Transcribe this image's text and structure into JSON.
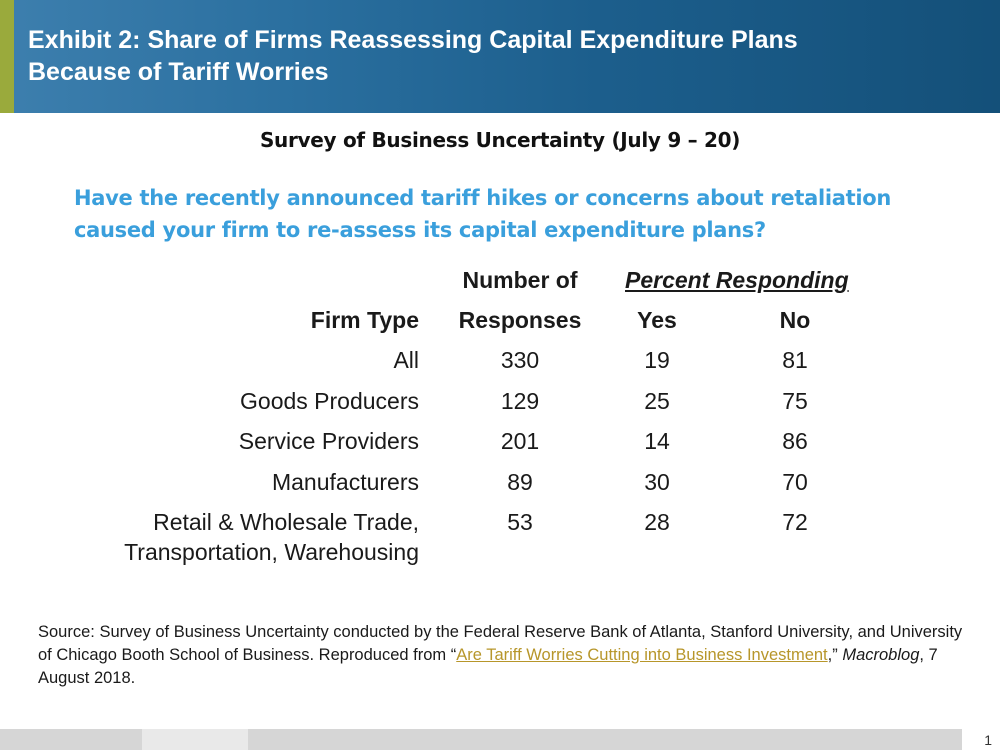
{
  "header": {
    "title_line1": "Exhibit 2: Share of Firms Reassessing Capital Expenditure Plans",
    "title_line2": "Because of Tariff Worries",
    "accent_color": "#9aaa3c",
    "background_color": "#1c5e8c"
  },
  "survey_title": "Survey of Business Uncertainty (July 9 – 20)",
  "question": {
    "line1": "Have the recently announced tariff hikes or concerns about retaliation",
    "line2": "caused your firm to re-assess its capital expenditure plans?",
    "color": "#3a9fdc"
  },
  "chart_data": {
    "type": "table",
    "columns": {
      "firm_type": "Firm Type",
      "responses_line1": "Number of",
      "responses_line2": "Responses",
      "percent_group": "Percent Responding",
      "yes": "Yes",
      "no": "No"
    },
    "rows": [
      {
        "firm_type": [
          "All"
        ],
        "responses": "330",
        "yes": "19",
        "no": "81"
      },
      {
        "firm_type": [
          "Goods Producers"
        ],
        "responses": "129",
        "yes": "25",
        "no": "75"
      },
      {
        "firm_type": [
          "Service Providers"
        ],
        "responses": "201",
        "yes": "14",
        "no": "86"
      },
      {
        "firm_type": [
          "Manufacturers"
        ],
        "responses": "89",
        "yes": "30",
        "no": "70"
      },
      {
        "firm_type": [
          "Retail & Wholesale Trade,",
          "Transportation, Warehousing"
        ],
        "responses": "53",
        "yes": "28",
        "no": "72"
      }
    ]
  },
  "source": {
    "prefix": "Source: Survey of Business Uncertainty conducted by the Federal Reserve Bank of Atlanta, Stanford University, and University of Chicago Booth School of Business. Reproduced from “",
    "link_text": "Are Tariff Worries Cutting into Business Investment",
    "middle": ",” ",
    "publication": "Macroblog",
    "suffix": ", 7 August 2018.",
    "link_color": "#b7962a"
  },
  "footer": {
    "page_number": "1"
  }
}
